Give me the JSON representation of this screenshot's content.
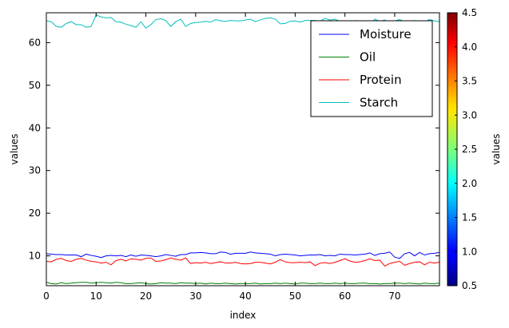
{
  "chart_data": {
    "type": "line",
    "xlabel": "index",
    "ylabel": "values",
    "xlim": [
      0,
      79
    ],
    "ylim": [
      3,
      67
    ],
    "xticks": [
      0,
      10,
      20,
      30,
      40,
      50,
      60,
      70
    ],
    "yticks": [
      10,
      20,
      30,
      40,
      50,
      60
    ],
    "grid": false,
    "legend_position": "top-right",
    "series": [
      {
        "name": "Moisture",
        "color": "#0000ff",
        "values": [
          10.5,
          10.4,
          10.3,
          10.3,
          10.2,
          10.2,
          10.2,
          9.8,
          10.4,
          10.1,
          9.9,
          9.6,
          10.0,
          10.1,
          10.0,
          10.1,
          9.8,
          10.2,
          9.9,
          10.2,
          10.1,
          10.0,
          9.8,
          10.0,
          10.3,
          10.1,
          9.9,
          10.3,
          10.3,
          10.7,
          10.7,
          10.8,
          10.7,
          10.5,
          10.5,
          10.9,
          10.8,
          10.4,
          10.6,
          10.6,
          10.6,
          10.9,
          10.7,
          10.6,
          10.5,
          10.4,
          10.0,
          10.3,
          10.4,
          10.3,
          10.2,
          10.0,
          10.1,
          10.2,
          10.2,
          10.3,
          10.0,
          10.1,
          10.0,
          10.4,
          10.3,
          10.3,
          10.2,
          10.3,
          10.4,
          10.7,
          10.1,
          10.5,
          10.6,
          10.9,
          9.7,
          9.4,
          10.5,
          10.8,
          10.0,
          10.8,
          10.2,
          10.5,
          10.6,
          10.8
        ]
      },
      {
        "name": "Oil",
        "color": "#008000",
        "values": [
          3.8,
          3.5,
          3.4,
          3.7,
          3.5,
          3.6,
          3.7,
          3.8,
          3.8,
          3.6,
          3.7,
          3.8,
          3.7,
          3.6,
          3.8,
          3.7,
          3.5,
          3.5,
          3.6,
          3.7,
          3.5,
          3.4,
          3.5,
          3.7,
          3.6,
          3.6,
          3.5,
          3.7,
          3.6,
          3.6,
          3.5,
          3.6,
          3.4,
          3.6,
          3.5,
          3.5,
          3.6,
          3.5,
          3.4,
          3.5,
          3.5,
          3.5,
          3.6,
          3.4,
          3.5,
          3.5,
          3.6,
          3.5,
          3.6,
          3.5,
          3.4,
          3.6,
          3.6,
          3.5,
          3.5,
          3.6,
          3.5,
          3.5,
          3.6,
          3.5,
          3.6,
          3.5,
          3.5,
          3.6,
          3.6,
          3.5,
          3.5,
          3.4,
          3.5,
          3.5,
          3.6,
          3.6,
          3.5,
          3.6,
          3.5,
          3.4,
          3.6,
          3.5,
          3.5,
          3.6
        ]
      },
      {
        "name": "Protein",
        "color": "#ff0000",
        "values": [
          8.7,
          8.6,
          9.2,
          9.4,
          8.9,
          8.7,
          9.2,
          9.4,
          9.0,
          8.7,
          8.6,
          8.3,
          8.5,
          7.9,
          8.9,
          9.2,
          8.8,
          9.3,
          9.2,
          9.0,
          9.4,
          9.5,
          8.7,
          8.8,
          9.1,
          9.5,
          9.2,
          9.0,
          9.5,
          8.2,
          8.4,
          8.3,
          8.5,
          8.2,
          8.4,
          8.6,
          8.3,
          8.3,
          8.5,
          8.2,
          8.1,
          8.2,
          8.5,
          8.5,
          8.3,
          8.1,
          8.5,
          9.1,
          8.6,
          8.4,
          8.4,
          8.5,
          8.4,
          8.6,
          7.7,
          8.3,
          8.4,
          8.2,
          8.5,
          8.9,
          9.3,
          8.8,
          8.5,
          8.6,
          8.9,
          9.3,
          8.9,
          9.0,
          7.6,
          8.2,
          8.5,
          8.7,
          7.8,
          8.2,
          8.5,
          8.6,
          7.9,
          8.5,
          8.3,
          8.5
        ]
      },
      {
        "name": "Starch",
        "color": "#00bfbf",
        "values": [
          65.1,
          64.9,
          63.8,
          63.6,
          64.5,
          64.9,
          64.2,
          64.2,
          63.6,
          63.8,
          66.5,
          66.0,
          65.8,
          65.9,
          64.9,
          64.8,
          64.3,
          64.0,
          63.6,
          64.9,
          63.4,
          64.2,
          65.4,
          65.6,
          65.2,
          63.8,
          64.9,
          65.5,
          63.8,
          64.5,
          64.7,
          64.8,
          65.0,
          64.8,
          65.4,
          65.1,
          65.0,
          65.2,
          65.1,
          65.1,
          65.3,
          65.5,
          64.9,
          65.3,
          65.7,
          65.8,
          65.5,
          64.4,
          64.5,
          65.0,
          65.1,
          64.8,
          65.2,
          65.2,
          65.2,
          65.0,
          65.7,
          65.3,
          65.5,
          65.0,
          64.9,
          64.5,
          65.2,
          65.0,
          65.0,
          64.0,
          65.5,
          65.0,
          65.3,
          64.5,
          65.1,
          65.4,
          64.9,
          64.6,
          65.2,
          64.7,
          64.9,
          65.4,
          65.1,
          64.9
        ]
      }
    ],
    "colorbar": {
      "label": "values",
      "range": [
        0.5,
        4.5
      ],
      "ticks": [
        "0.5",
        "1.0",
        "1.5",
        "2.0",
        "2.5",
        "3.0",
        "3.5",
        "4.0",
        "4.5"
      ],
      "colormap": "jet"
    }
  }
}
